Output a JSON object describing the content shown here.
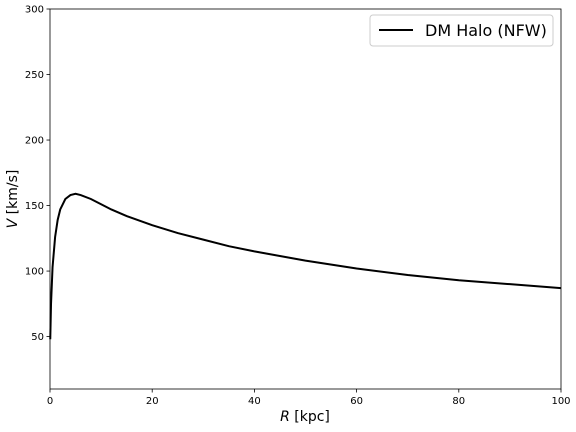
{
  "chart_data": {
    "type": "line",
    "xlabel_symbol": "R",
    "xlabel_unit": " [kpc]",
    "ylabel_symbol": "V",
    "ylabel_unit": " [km/s]",
    "xlim": [
      0,
      100
    ],
    "ylim": [
      10,
      300
    ],
    "xticks": [
      0,
      20,
      40,
      60,
      80,
      100
    ],
    "yticks": [
      50,
      100,
      150,
      200,
      250,
      300
    ],
    "grid": false,
    "legend_position": "upper-right",
    "series": [
      {
        "name": "DM Halo (NFW)",
        "color": "#000000",
        "points": [
          [
            0.05,
            48
          ],
          [
            0.2,
            75
          ],
          [
            0.5,
            103
          ],
          [
            1,
            126
          ],
          [
            1.5,
            139
          ],
          [
            2,
            147
          ],
          [
            3,
            155
          ],
          [
            4,
            158
          ],
          [
            5,
            159
          ],
          [
            6,
            158
          ],
          [
            8,
            155
          ],
          [
            10,
            151
          ],
          [
            12,
            147
          ],
          [
            15,
            142
          ],
          [
            20,
            135
          ],
          [
            25,
            129
          ],
          [
            30,
            124
          ],
          [
            35,
            119
          ],
          [
            40,
            115
          ],
          [
            50,
            108
          ],
          [
            60,
            102
          ],
          [
            70,
            97
          ],
          [
            80,
            93
          ],
          [
            90,
            90
          ],
          [
            100,
            87
          ]
        ]
      }
    ]
  }
}
